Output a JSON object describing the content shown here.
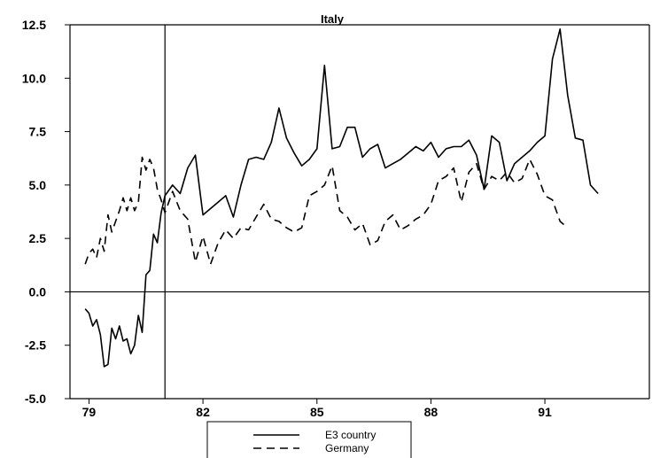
{
  "chart_data": {
    "type": "line",
    "title": "Italy",
    "xlabel": "",
    "ylabel": "",
    "x_tick_labels": [
      "79",
      "82",
      "85",
      "88",
      "91"
    ],
    "y_tick_labels": [
      "12.5",
      "10.0",
      "7.5",
      "5.0",
      "2.5",
      "0.0",
      "-2.5",
      "-5.0"
    ],
    "xlim": [
      1978.5,
      1993.75
    ],
    "ylim": [
      -5,
      12.5
    ],
    "reference_lines": {
      "vertical_x": 1981.0,
      "horizontal_y": 0
    },
    "legend_position": "bottom-center",
    "series": [
      {
        "name": "E3 country",
        "style": "solid",
        "x": [
          1978.9,
          1979.0,
          1979.1,
          1979.2,
          1979.3,
          1979.4,
          1979.5,
          1979.6,
          1979.7,
          1979.8,
          1979.9,
          1980.0,
          1980.1,
          1980.2,
          1980.3,
          1980.4,
          1980.5,
          1980.6,
          1980.7,
          1980.8,
          1980.9,
          1981.0,
          1981.2,
          1981.4,
          1981.6,
          1981.8,
          1982.0,
          1982.2,
          1982.4,
          1982.6,
          1982.8,
          1983.0,
          1983.2,
          1983.4,
          1983.6,
          1983.8,
          1984.0,
          1984.2,
          1984.4,
          1984.6,
          1984.8,
          1985.0,
          1985.2,
          1985.4,
          1985.6,
          1985.8,
          1986.0,
          1986.2,
          1986.4,
          1986.6,
          1986.8,
          1987.0,
          1987.2,
          1987.4,
          1987.6,
          1987.8,
          1988.0,
          1988.2,
          1988.4,
          1988.6,
          1988.8,
          1989.0,
          1989.2,
          1989.4,
          1989.6,
          1989.8,
          1990.0,
          1990.2,
          1990.4,
          1990.6,
          1990.8,
          1991.0,
          1991.2,
          1991.4,
          1991.6,
          1991.8,
          1992.0,
          1992.2,
          1992.4,
          1992.6,
          1992.8,
          1993.0,
          1993.2,
          1993.4
        ],
        "values": [
          -0.8,
          -1.0,
          -1.6,
          -1.3,
          -2.0,
          -3.5,
          -3.4,
          -1.7,
          -2.2,
          -1.6,
          -2.3,
          -2.2,
          -2.9,
          -2.5,
          -1.1,
          -1.9,
          0.8,
          1.0,
          2.7,
          2.3,
          3.7,
          4.5,
          5.0,
          4.6,
          5.8,
          6.4,
          3.6,
          3.9,
          4.2,
          4.5,
          3.5,
          5.0,
          6.2,
          6.3,
          6.2,
          7.0,
          8.6,
          7.2,
          6.5,
          5.9,
          6.2,
          6.7,
          10.6,
          6.7,
          6.8,
          7.7,
          7.7,
          6.3,
          6.7,
          6.9,
          5.8,
          6.0,
          6.2,
          6.5,
          6.8,
          6.6,
          7.0,
          6.3,
          6.7,
          6.8,
          6.8,
          7.1,
          6.4,
          4.8,
          7.3,
          7.0,
          5.2,
          6.0,
          6.3,
          6.6,
          7.0,
          7.3,
          10.9,
          12.3,
          9.2,
          7.2,
          7.1,
          5.0,
          4.6,
          4.6,
          4.6,
          4.6,
          4.6,
          4.6
        ],
        "valuesEnd": 79
      },
      {
        "name": "Germany",
        "style": "dashed",
        "x": [
          1978.9,
          1979.0,
          1979.1,
          1979.2,
          1979.3,
          1979.4,
          1979.5,
          1979.6,
          1979.7,
          1979.8,
          1979.9,
          1980.0,
          1980.1,
          1980.2,
          1980.3,
          1980.4,
          1980.5,
          1980.6,
          1980.7,
          1980.8,
          1980.9,
          1981.0,
          1981.2,
          1981.4,
          1981.6,
          1981.8,
          1982.0,
          1982.2,
          1982.4,
          1982.6,
          1982.8,
          1983.0,
          1983.2,
          1983.4,
          1983.6,
          1983.8,
          1984.0,
          1984.2,
          1984.4,
          1984.6,
          1984.8,
          1985.0,
          1985.2,
          1985.4,
          1985.6,
          1985.8,
          1986.0,
          1986.2,
          1986.4,
          1986.6,
          1986.8,
          1987.0,
          1987.2,
          1987.4,
          1987.6,
          1987.8,
          1988.0,
          1988.2,
          1988.4,
          1988.6,
          1988.8,
          1989.0,
          1989.2,
          1989.4,
          1989.6,
          1989.8,
          1990.0,
          1990.2,
          1990.4,
          1990.6,
          1990.8,
          1991.0,
          1991.2,
          1991.4,
          1991.6,
          1991.8,
          1992.0,
          1992.2,
          1992.4,
          1992.6
        ],
        "values": [
          1.3,
          1.8,
          2.0,
          1.6,
          2.5,
          1.9,
          3.6,
          2.8,
          3.3,
          3.8,
          4.4,
          3.8,
          4.4,
          3.8,
          4.2,
          6.3,
          5.7,
          6.2,
          5.8,
          4.8,
          4.3,
          3.7,
          4.7,
          3.8,
          3.4,
          1.4,
          2.6,
          1.3,
          2.3,
          2.9,
          2.5,
          3.0,
          2.9,
          3.5,
          4.1,
          3.4,
          3.3,
          3.0,
          2.8,
          3.0,
          4.5,
          4.7,
          5.0,
          5.9,
          3.8,
          3.5,
          2.9,
          3.2,
          2.2,
          2.4,
          3.3,
          3.6,
          2.9,
          3.1,
          3.4,
          3.6,
          4.1,
          5.2,
          5.4,
          5.8,
          4.2,
          5.6,
          6.0,
          4.8,
          5.4,
          5.2,
          5.6,
          5.1,
          5.3,
          6.2,
          5.5,
          4.5,
          4.3,
          3.3,
          3.0,
          3.0,
          3.0,
          3.0,
          3.0,
          3.0
        ],
        "valuesEnd": 75
      }
    ]
  }
}
